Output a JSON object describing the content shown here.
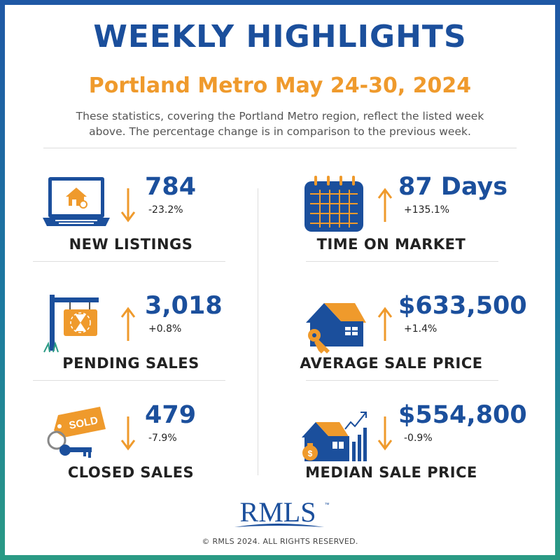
{
  "header": {
    "title": "WEEKLY HIGHLIGHTS",
    "subtitle": "Portland Metro May 24-30, 2024",
    "description_line1": "These statistics, covering the Portland Metro region, reflect the listed week",
    "description_line2": "above. The percentage change is in comparison to the previous week."
  },
  "stats": {
    "new_listings": {
      "value": "784",
      "change": "-23.2%",
      "label": "NEW LISTINGS",
      "trend": "down",
      "icon": "laptop-house-icon"
    },
    "time_on_market": {
      "value": "87 Days",
      "change": "+135.1%",
      "label": "TIME ON MARKET",
      "trend": "up",
      "icon": "calendar-icon"
    },
    "pending_sales": {
      "value": "3,018",
      "change": "+0.8%",
      "label": "PENDING SALES",
      "trend": "up",
      "icon": "hourglass-sign-icon"
    },
    "average_price": {
      "value": "$633,500",
      "change": "+1.4%",
      "label": "AVERAGE SALE PRICE",
      "trend": "up",
      "icon": "house-key-icon"
    },
    "closed_sales": {
      "value": "479",
      "change": "-7.9%",
      "label": "CLOSED SALES",
      "trend": "down",
      "icon": "sold-tag-keys-icon"
    },
    "median_price": {
      "value": "$554,800",
      "change": "-0.9%",
      "label": "MEDIAN SALE PRICE",
      "trend": "down",
      "icon": "house-chart-icon"
    }
  },
  "icon_sold_text": "SOLD",
  "footer": {
    "logo_text": "RMLS",
    "logo_tm": "™",
    "copyright": "© RMLS 2024. ALL RIGHTS RESERVED."
  },
  "colors": {
    "navy": "#1b4f9c",
    "orange": "#ef9a2c",
    "teal": "#2a9a84"
  }
}
